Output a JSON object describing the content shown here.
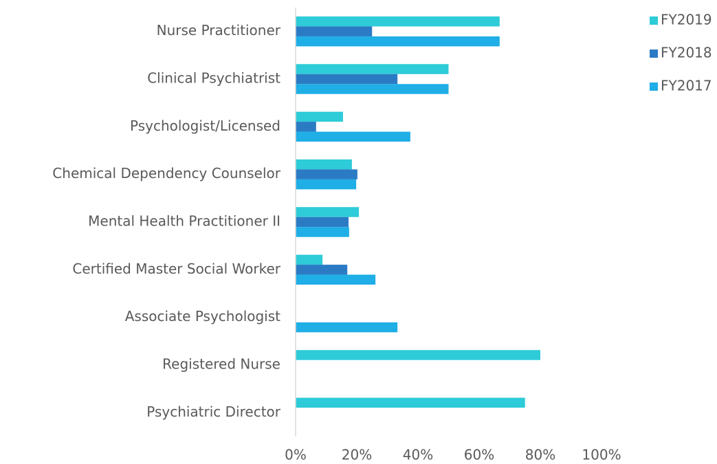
{
  "chart_data": {
    "type": "hbar",
    "categories": [
      "Nurse Practitioner",
      "Clinical Psychiatrist",
      "Psychologist/Licensed",
      "Chemical Dependency Counselor",
      "Mental Health Practitioner II",
      "Certified Master Social Worker",
      "Associate Psychologist",
      "Registered Nurse",
      "Psychiatric Director"
    ],
    "series": [
      {
        "name": "FY2019",
        "color": "#2ecbd8",
        "values": [
          66.7,
          50,
          15.5,
          18.4,
          20.7,
          8.8,
          null,
          80,
          75
        ]
      },
      {
        "name": "FY2018",
        "color": "#2b7bc4",
        "values": [
          25,
          33.3,
          6.7,
          20.2,
          17.3,
          16.9,
          null,
          null,
          null
        ]
      },
      {
        "name": "FY2017",
        "color": "#1faee6",
        "values": [
          66.7,
          50,
          37.5,
          19.8,
          17.5,
          26.1,
          33.3,
          null,
          null
        ]
      }
    ],
    "xlim": [
      0,
      100
    ],
    "xticks": [
      {
        "value": 0,
        "label": "0%"
      },
      {
        "value": 20,
        "label": "20%"
      },
      {
        "value": 40,
        "label": "40%"
      },
      {
        "value": 60,
        "label": "60%"
      },
      {
        "value": 80,
        "label": "80%"
      },
      {
        "value": 100,
        "label": "100%"
      }
    ],
    "legend": "top-right"
  }
}
